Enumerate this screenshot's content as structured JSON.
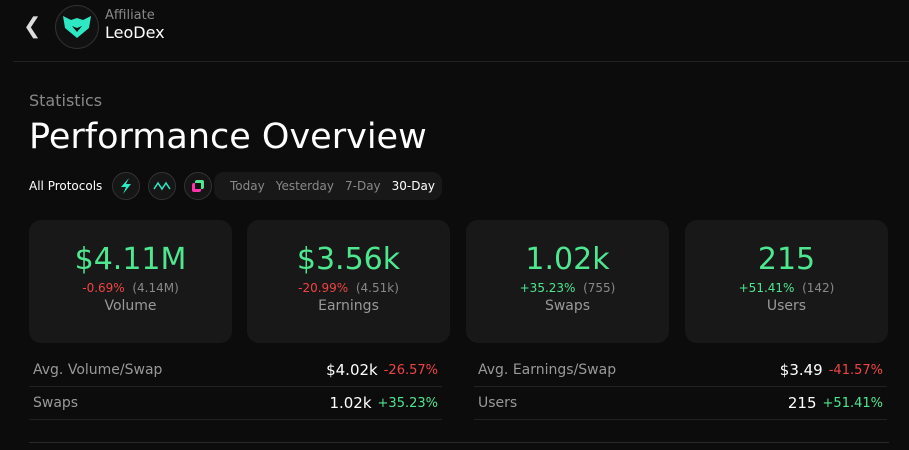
{
  "header": {
    "back_icon": "chevron-left-icon",
    "subtitle": "Affiliate",
    "name": "LeoDex"
  },
  "page": {
    "section": "Statistics",
    "title": "Performance Overview"
  },
  "filters": {
    "protocols_label": "All Protocols",
    "protocol_icons": [
      "thorchain-icon",
      "maya-icon",
      "chainflip-icon"
    ],
    "ranges": [
      "Today",
      "Yesterday",
      "7-Day",
      "30-Day"
    ],
    "active_range": "30-Day"
  },
  "cards": [
    {
      "value": "$4.11M",
      "change": "-0.69%",
      "prev": "(4.14M)",
      "label": "Volume",
      "trend": "neg"
    },
    {
      "value": "$3.56k",
      "change": "-20.99%",
      "prev": "(4.51k)",
      "label": "Earnings",
      "trend": "neg"
    },
    {
      "value": "1.02k",
      "change": "+35.23%",
      "prev": "(755)",
      "label": "Swaps",
      "trend": "pos"
    },
    {
      "value": "215",
      "change": "+51.41%",
      "prev": "(142)",
      "label": "Users",
      "trend": "pos"
    }
  ],
  "metrics": [
    {
      "label": "Avg. Volume/Swap",
      "value": "$4.02k",
      "change": "-26.57%"
    },
    {
      "label": "Avg. Earnings/Swap",
      "value": "$3.49",
      "change": "-41.57%"
    },
    {
      "label": "Swaps",
      "value": "1.02k",
      "change": "+35.23%"
    },
    {
      "label": "Users",
      "value": "215",
      "change": "+51.41%"
    }
  ],
  "colors": {
    "positive": "#4ee68f",
    "negative": "#ef4444",
    "card": "#181818"
  }
}
